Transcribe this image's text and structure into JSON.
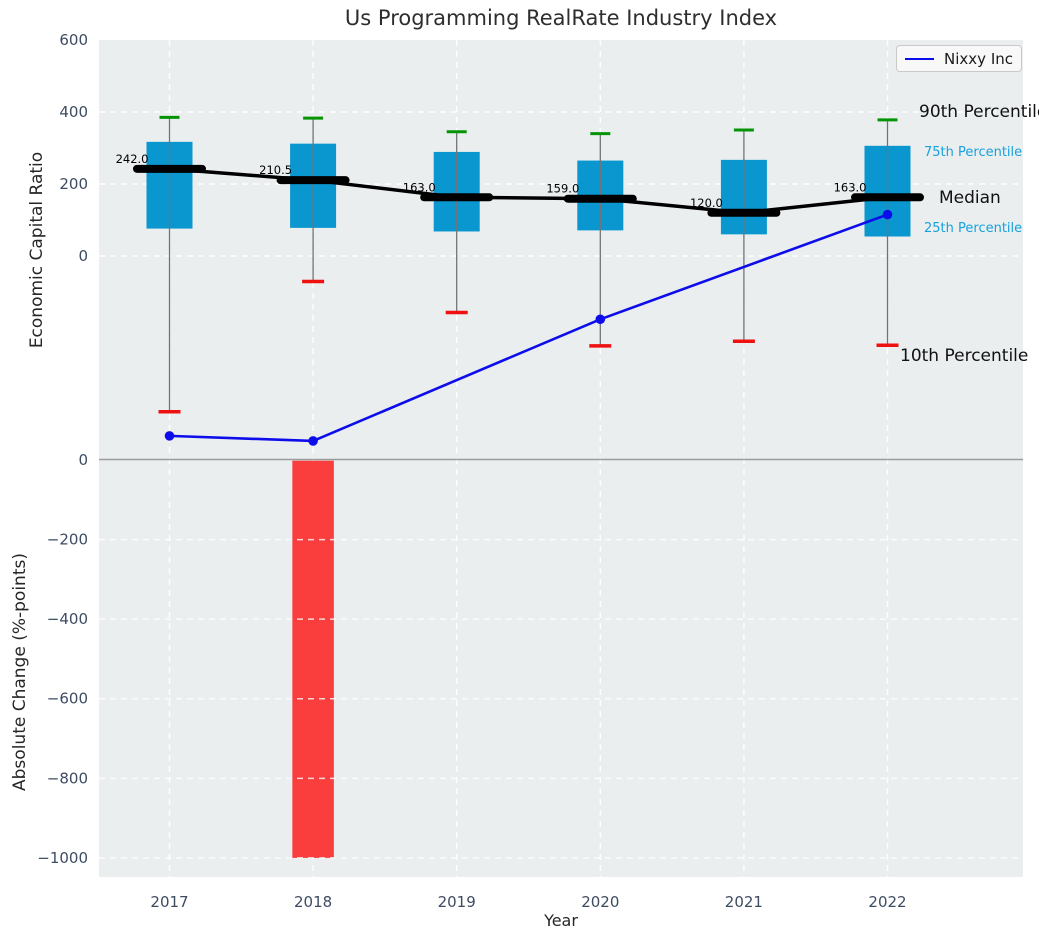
{
  "title": "Us Programming RealRate Industry Index",
  "axes": {
    "xlabel": "Year",
    "ylabel_top": "Economic Capital Ratio",
    "ylabel_bottom": "Absolute Change (%-points)"
  },
  "legend": {
    "label": "Nixxy Inc"
  },
  "annotations": {
    "p90": "90th Percentile",
    "p75": "75th Percentile",
    "median": "Median",
    "p25": "25th Percentile",
    "p10": "10th Percentile"
  },
  "colors": {
    "box_fill": "#0a96ce",
    "cap_high": "#059405",
    "cap_low": "#ef1010",
    "median": "#000000",
    "company_line": "#0d0deb",
    "bar_negative": "#fa3d3d",
    "plot_bg": "#eaeeef",
    "grid": "#ffffff",
    "tick_label": "#3d4c63",
    "whisker": "#737373",
    "zero_line": "#9c9c9c",
    "percentile_label_accent": "#18a1dd"
  },
  "chart_data": {
    "type": "combo",
    "categories": [
      "2017",
      "2018",
      "2019",
      "2020",
      "2021",
      "2022"
    ],
    "subplots": [
      {
        "type": "box",
        "ylabel": "Economic Capital Ratio",
        "ylim": [
          -567,
          600
        ],
        "yticks": [
          600,
          400,
          200,
          0
        ],
        "grid": true,
        "series": {
          "p90": [
            385,
            383,
            345,
            340,
            350,
            378
          ],
          "p75": [
            317,
            312,
            289,
            265,
            267,
            306
          ],
          "median": [
            242.0,
            210.5,
            163.0,
            159.0,
            120.0,
            163.0
          ],
          "p25": [
            76,
            78,
            68,
            71,
            60,
            54
          ],
          "p10": [
            -433,
            -71,
            -157,
            -250,
            -237,
            -248
          ]
        },
        "median_labels": [
          "242.0",
          "210.5",
          "163.0",
          "159.0",
          "120.0",
          "163.0"
        ],
        "company_line": {
          "name": "Nixxy Inc",
          "years": [
            2017,
            2018,
            2020,
            2022
          ],
          "values": [
            -500,
            -514,
            -176,
            115
          ]
        },
        "legend_position": "upper right"
      },
      {
        "type": "bar",
        "ylabel": "Absolute Change (%-points)",
        "ylim": [
          -1048,
          0
        ],
        "yticks": [
          0,
          -200,
          -400,
          -600,
          -800,
          -1000
        ],
        "grid": true,
        "values": [
          null,
          -1000,
          null,
          null,
          null,
          null
        ]
      }
    ]
  }
}
